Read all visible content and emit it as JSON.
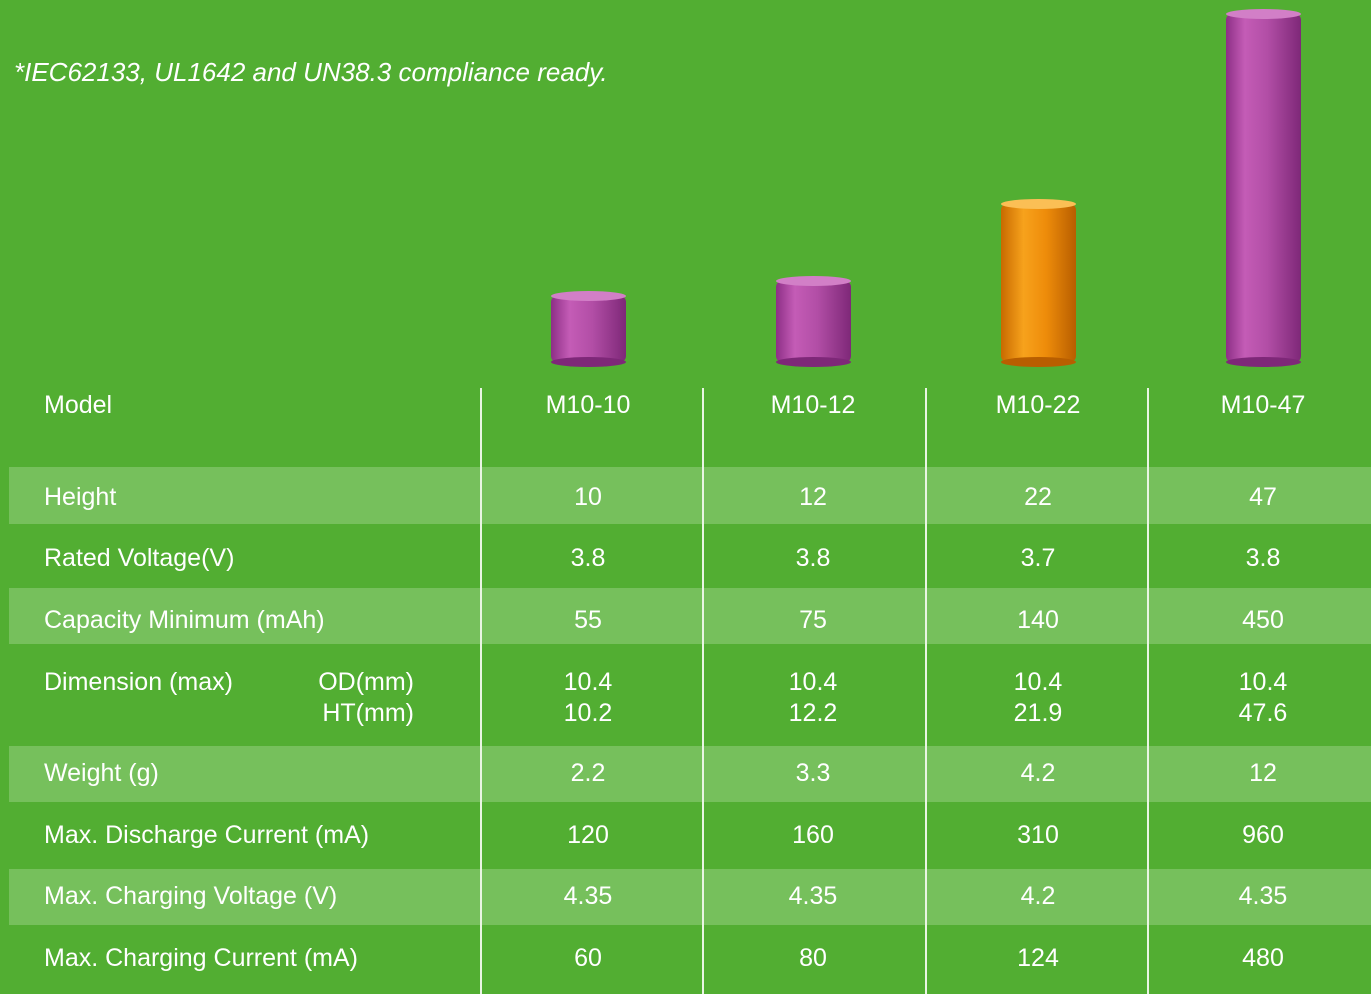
{
  "note": "*IEC62133, UL1642 and UN38.3 compliance ready.",
  "table": {
    "header": {
      "label": "Model",
      "columns": [
        "M10-10",
        "M10-12",
        "M10-22",
        "M10-47"
      ]
    },
    "rows": [
      {
        "label": "Height",
        "values": [
          "10",
          "12",
          "22",
          "47"
        ]
      },
      {
        "label": "Rated Voltage(V)",
        "values": [
          "3.8",
          "3.8",
          "3.7",
          "3.8"
        ]
      },
      {
        "label": "Capacity Minimum (mAh)",
        "values": [
          "55",
          "75",
          "140",
          "450"
        ]
      },
      {
        "label": "Dimension (max)",
        "sublabels": [
          "OD(mm)",
          "HT(mm)"
        ],
        "values": [
          [
            "10.4",
            "10.2"
          ],
          [
            "10.4",
            "12.2"
          ],
          [
            "10.4",
            "21.9"
          ],
          [
            "10.4",
            "47.6"
          ]
        ]
      },
      {
        "label": "Weight (g)",
        "values": [
          "2.2",
          "3.3",
          "4.2",
          "12"
        ]
      },
      {
        "label": "Max. Discharge Current (mA)",
        "values": [
          "120",
          "160",
          "310",
          "960"
        ]
      },
      {
        "label": "Max. Charging Voltage (V)",
        "values": [
          "4.35",
          "4.35",
          "4.2",
          "4.35"
        ]
      },
      {
        "label": "Max. Charging Current (mA)",
        "values": [
          "60",
          "80",
          "124",
          "480"
        ]
      }
    ]
  }
}
